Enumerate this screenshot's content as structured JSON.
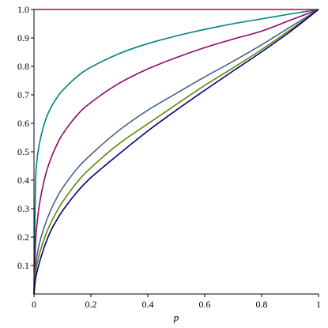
{
  "chart_data": {
    "type": "line",
    "title": "",
    "xlabel": "p",
    "ylabel": "",
    "xlim": [
      0,
      1
    ],
    "ylim": [
      0,
      1
    ],
    "grid": false,
    "legend": "none",
    "x_ticks": [
      {
        "value": 0,
        "label": "0"
      },
      {
        "value": 0.2,
        "label": "0.2"
      },
      {
        "value": 0.4,
        "label": "0.4"
      },
      {
        "value": 0.6,
        "label": "0.6"
      },
      {
        "value": 0.8,
        "label": "0.8"
      },
      {
        "value": 1,
        "label": "1"
      }
    ],
    "y_ticks": [
      {
        "value": 0.1,
        "label": "0.1"
      },
      {
        "value": 0.2,
        "label": "0.2"
      },
      {
        "value": 0.3,
        "label": "0.3"
      },
      {
        "value": 0.4,
        "label": "0.4"
      },
      {
        "value": 0.5,
        "label": "0.5"
      },
      {
        "value": 0.6,
        "label": "0.6"
      },
      {
        "value": 0.7,
        "label": "0.7"
      },
      {
        "value": 0.8,
        "label": "0.8"
      },
      {
        "value": 0.9,
        "label": "0.9"
      },
      {
        "value": 1.0,
        "label": "1.0"
      }
    ],
    "x": [
      0,
      0.005,
      0.01,
      0.02,
      0.04,
      0.06,
      0.08,
      0.1,
      0.15,
      0.2,
      0.3,
      0.4,
      0.5,
      0.6,
      0.7,
      0.8,
      0.9,
      1.0
    ],
    "series": [
      {
        "color": "#c0003c",
        "values": [
          1.0,
          1.0,
          1.0,
          1.0,
          1.0,
          1.0,
          1.0,
          1.0,
          1.0,
          1.0,
          1.0,
          1.0,
          1.0,
          1.0,
          1.0,
          1.0,
          1.0,
          1.0
        ]
      },
      {
        "color": "#008080",
        "values": [
          0,
          0.369,
          0.464,
          0.533,
          0.61,
          0.656,
          0.689,
          0.715,
          0.763,
          0.797,
          0.845,
          0.88,
          0.907,
          0.93,
          0.95,
          0.967,
          0.984,
          1.0
        ]
      },
      {
        "color": "#8b0a6b",
        "values": [
          0,
          0.17,
          0.239,
          0.32,
          0.416,
          0.478,
          0.524,
          0.561,
          0.627,
          0.673,
          0.741,
          0.791,
          0.831,
          0.866,
          0.896,
          0.924,
          0.962,
          1.0
        ]
      },
      {
        "color": "#45628f",
        "values": [
          0,
          0.09,
          0.13,
          0.181,
          0.247,
          0.297,
          0.338,
          0.372,
          0.439,
          0.49,
          0.576,
          0.646,
          0.705,
          0.763,
          0.818,
          0.876,
          0.938,
          1.0
        ]
      },
      {
        "color": "#5d8a00",
        "values": [
          0,
          0.07,
          0.101,
          0.144,
          0.205,
          0.252,
          0.29,
          0.323,
          0.391,
          0.444,
          0.529,
          0.598,
          0.666,
          0.733,
          0.795,
          0.859,
          0.928,
          1.0
        ]
      },
      {
        "color": "#000080",
        "values": [
          0,
          0.05,
          0.075,
          0.114,
          0.176,
          0.224,
          0.26,
          0.292,
          0.357,
          0.409,
          0.493,
          0.573,
          0.646,
          0.716,
          0.784,
          0.851,
          0.922,
          1.0
        ]
      }
    ]
  }
}
